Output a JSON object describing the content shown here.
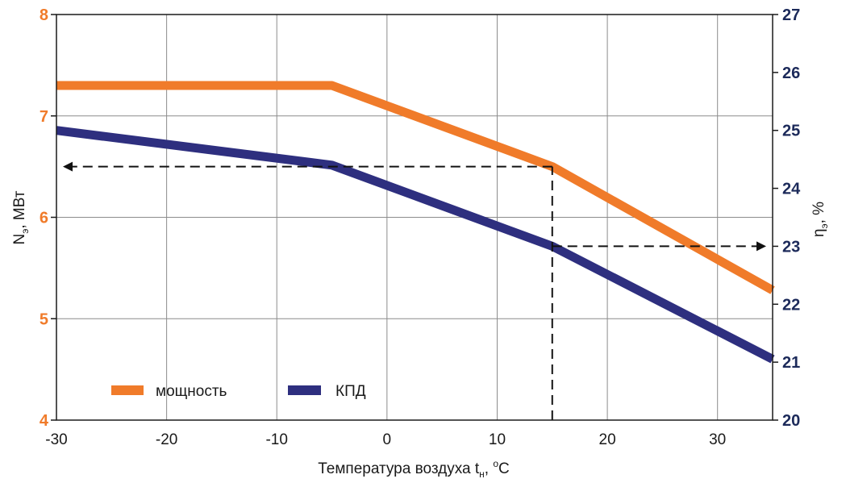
{
  "chart_data": {
    "type": "line",
    "x_axis": {
      "label_main": "Температура воздуха t",
      "label_sub": "н",
      "label_unit_sup": "o",
      "label_unit": "C",
      "range": [
        -30,
        35
      ],
      "ticks": [
        -30,
        -20,
        -10,
        0,
        10,
        20,
        30
      ]
    },
    "y_left": {
      "label_main": "N",
      "label_sub": "э",
      "label_unit": ", МВт",
      "range": [
        4,
        8
      ],
      "ticks": [
        4,
        5,
        6,
        7,
        8
      ],
      "color": "#f07b2a"
    },
    "y_right": {
      "label_main": "η",
      "label_sub": "э",
      "label_unit": ", %",
      "range": [
        20,
        27
      ],
      "ticks": [
        20,
        21,
        22,
        23,
        24,
        25,
        26,
        27
      ],
      "color": "#1c2a5a"
    },
    "series": [
      {
        "name": "мощность",
        "axis": "left",
        "color": "#f07b2a",
        "points": [
          [
            -30,
            7.3
          ],
          [
            -5,
            7.3
          ],
          [
            15,
            6.5
          ],
          [
            35,
            5.28
          ]
        ]
      },
      {
        "name": "КПД",
        "axis": "right",
        "color": "#2e2f7f",
        "points": [
          [
            -30,
            25.0
          ],
          [
            -5,
            24.4
          ],
          [
            15,
            23.0
          ],
          [
            35,
            21.05
          ]
        ]
      }
    ],
    "annotation": {
      "x": 15,
      "left_value": 6.5,
      "right_value": 23.0
    },
    "grid": true,
    "legend_position": "bottom-left"
  }
}
